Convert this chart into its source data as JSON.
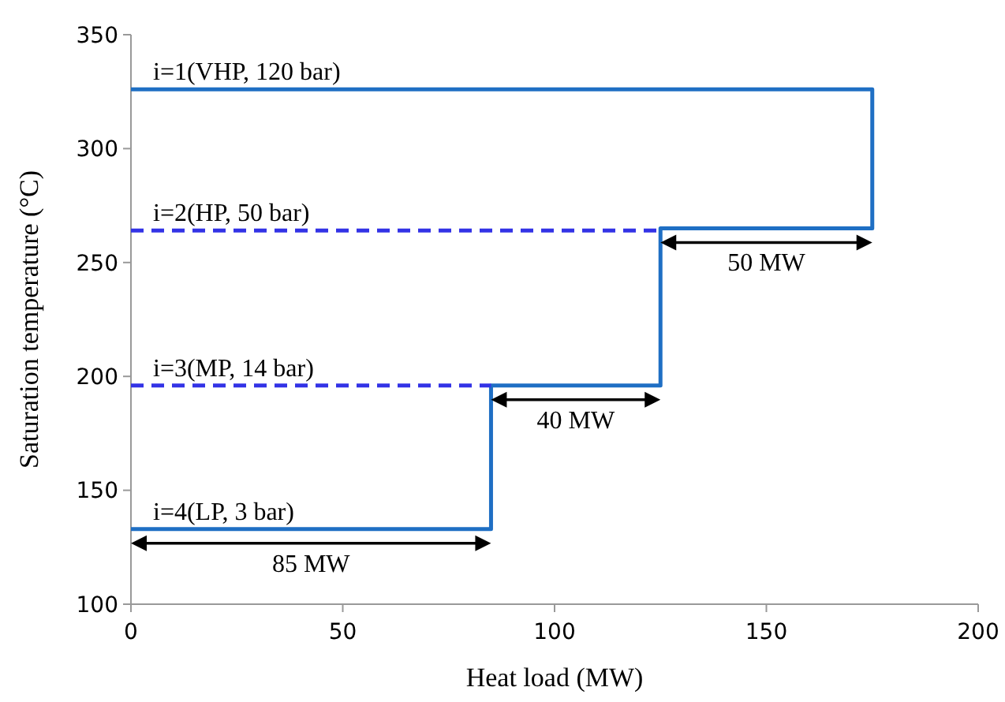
{
  "chart_data": {
    "type": "line",
    "xlabel": "Heat load (MW)",
    "ylabel": "Saturation temperature (°C)",
    "xlim": [
      0,
      200
    ],
    "xticks": [
      0,
      50,
      100,
      150,
      200
    ],
    "ylim": [
      100,
      350
    ],
    "yticks": [
      100,
      150,
      200,
      250,
      300,
      350
    ],
    "grid": false,
    "marker": "none",
    "series": [
      {
        "color": "#1f6fc4",
        "line_style": "solid",
        "x": [
          0,
          85,
          85,
          125,
          125,
          175,
          175,
          0
        ],
        "values": [
          133,
          133,
          196,
          196,
          265,
          265,
          326,
          326
        ]
      },
      {
        "color": "#3333e6",
        "line_style": "dashed",
        "x": [
          0,
          125
        ],
        "values": [
          264,
          264
        ]
      },
      {
        "color": "#3333e6",
        "line_style": "dashed",
        "x": [
          0,
          85
        ],
        "values": [
          196,
          196
        ]
      }
    ],
    "annotations": [
      {
        "text": "i=1(VHP, 120 bar)",
        "x": 0,
        "y": 326
      },
      {
        "text": "i=2(HP, 50 bar)",
        "x": 0,
        "y": 264
      },
      {
        "text": "i=3(MP, 14 bar)",
        "x": 0,
        "y": 196
      },
      {
        "text": "i=4(LP, 3 bar)",
        "x": 0,
        "y": 133
      },
      {
        "text": "85 MW",
        "x": 42.5,
        "y": 133
      },
      {
        "text": "40 MW",
        "x": 105,
        "y": 196
      },
      {
        "text": "50 MW",
        "x": 150,
        "y": 265
      }
    ]
  }
}
